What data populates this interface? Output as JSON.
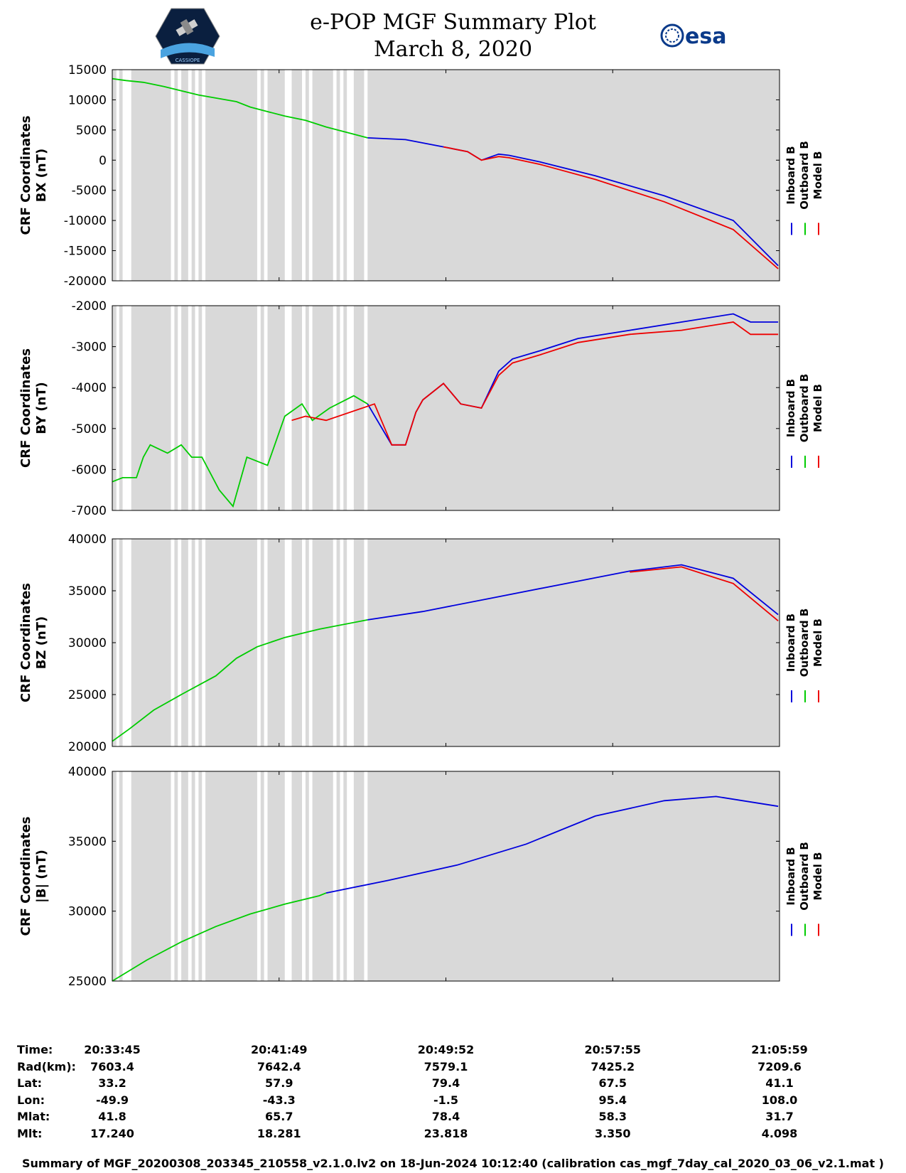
{
  "header": {
    "title_line1": "e-POP MGF Summary Plot",
    "title_line2": "March 8, 2020",
    "logo_left": "CASSIOPE",
    "logo_right": "esa"
  },
  "colors": {
    "inboard": "#0000dd",
    "outboard": "#00cc00",
    "model": "#ee0000",
    "gap": "#d9d9d9"
  },
  "legend": [
    "Inboard B",
    "Outboard B",
    "Model B"
  ],
  "chart_data": [
    {
      "type": "line",
      "ylabel1": "CRF Coordinates",
      "ylabel2": "BX (nT)",
      "ylim": [
        -20000,
        15000
      ],
      "yticks": [
        15000,
        10000,
        5000,
        0,
        -5000,
        -10000,
        -15000,
        -20000
      ],
      "xlim": [
        0,
        1934
      ],
      "series": [
        {
          "name": "Outboard B",
          "x": [
            0,
            40,
            90,
            100,
            150,
            250,
            360,
            400,
            500,
            560,
            620,
            740
          ],
          "values": [
            13500,
            13200,
            12900,
            12800,
            12200,
            10800,
            9700,
            8800,
            7300,
            6600,
            5500,
            3700
          ]
        },
        {
          "name": "Inboard B",
          "x": [
            740,
            850,
            960,
            1030,
            1070,
            1120,
            1150,
            1240,
            1400,
            1600,
            1800,
            1930
          ],
          "values": [
            3700,
            3400,
            2200,
            1400,
            0,
            1000,
            800,
            -300,
            -2600,
            -5900,
            -10000,
            -17500
          ]
        },
        {
          "name": "Model B",
          "x": [
            960,
            1030,
            1070,
            1120,
            1150,
            1240,
            1400,
            1600,
            1800,
            1930
          ],
          "values": [
            2200,
            1400,
            0,
            600,
            400,
            -700,
            -3200,
            -6900,
            -11500,
            -18000
          ]
        }
      ]
    },
    {
      "type": "line",
      "ylabel1": "CRF Coordinates",
      "ylabel2": "BY (nT)",
      "ylim": [
        -7000,
        -2000
      ],
      "yticks": [
        -2000,
        -3000,
        -4000,
        -5000,
        -6000,
        -7000
      ],
      "xlim": [
        0,
        1934
      ],
      "series": [
        {
          "name": "Outboard B",
          "x": [
            0,
            30,
            70,
            90,
            110,
            160,
            200,
            230,
            260,
            310,
            350,
            390,
            450,
            500,
            550,
            580,
            630,
            700,
            740
          ],
          "values": [
            -6300,
            -6200,
            -6200,
            -5700,
            -5400,
            -5600,
            -5400,
            -5700,
            -5700,
            -6500,
            -6900,
            -5700,
            -5900,
            -4700,
            -4400,
            -4800,
            -4500,
            -4200,
            -4400
          ]
        },
        {
          "name": "Inboard B",
          "x": [
            740,
            810,
            850,
            880,
            900,
            960,
            1010,
            1070,
            1120,
            1160,
            1240,
            1350,
            1500,
            1650,
            1800,
            1850,
            1930
          ],
          "values": [
            -4400,
            -5400,
            -5400,
            -4600,
            -4300,
            -3900,
            -4400,
            -4500,
            -3600,
            -3300,
            -3100,
            -2800,
            -2600,
            -2400,
            -2200,
            -2400,
            -2400
          ]
        },
        {
          "name": "Model B",
          "x": [
            520,
            560,
            620,
            760,
            810,
            850,
            880,
            900,
            960,
            1010,
            1070,
            1120,
            1160,
            1240,
            1350,
            1500,
            1650,
            1800,
            1850,
            1930
          ],
          "values": [
            -4800,
            -4700,
            -4800,
            -4400,
            -5400,
            -5400,
            -4600,
            -4300,
            -3900,
            -4400,
            -4500,
            -3700,
            -3400,
            -3200,
            -2900,
            -2700,
            -2600,
            -2400,
            -2700,
            -2700
          ]
        }
      ]
    },
    {
      "type": "line",
      "ylabel1": "CRF Coordinates",
      "ylabel2": "BZ (nT)",
      "ylim": [
        20000,
        40000
      ],
      "yticks": [
        40000,
        35000,
        30000,
        25000,
        20000
      ],
      "xlim": [
        0,
        1934
      ],
      "series": [
        {
          "name": "Outboard B",
          "x": [
            0,
            50,
            120,
            200,
            300,
            360,
            420,
            500,
            600,
            740
          ],
          "values": [
            20500,
            21700,
            23500,
            25000,
            26800,
            28500,
            29600,
            30500,
            31300,
            32200
          ]
        },
        {
          "name": "Inboard B",
          "x": [
            740,
            900,
            1100,
            1300,
            1500,
            1650,
            1800,
            1930
          ],
          "values": [
            32200,
            33000,
            34300,
            35600,
            36900,
            37500,
            36200,
            32700
          ]
        },
        {
          "name": "Model B",
          "x": [
            1500,
            1650,
            1800,
            1930
          ],
          "values": [
            36800,
            37300,
            35700,
            32100
          ]
        }
      ]
    },
    {
      "type": "line",
      "ylabel1": "CRF Coordinates",
      "ylabel2": "|B| (nT)",
      "ylim": [
        25000,
        40000
      ],
      "yticks": [
        40000,
        35000,
        30000,
        25000
      ],
      "xlim": [
        0,
        1934
      ],
      "series": [
        {
          "name": "Outboard B",
          "x": [
            0,
            100,
            200,
            300,
            400,
            500,
            600,
            620
          ],
          "values": [
            25000,
            26500,
            27800,
            28900,
            29800,
            30500,
            31100,
            31300
          ]
        },
        {
          "name": "Inboard B",
          "x": [
            620,
            800,
            1000,
            1200,
            1400,
            1600,
            1750,
            1930
          ],
          "values": [
            31300,
            32200,
            33300,
            34800,
            36800,
            37900,
            38200,
            37500
          ]
        }
      ]
    }
  ],
  "gap_bands": [
    [
      0,
      12
    ],
    [
      20,
      30
    ],
    [
      55,
      170
    ],
    [
      180,
      190
    ],
    [
      200,
      220
    ],
    [
      230,
      240
    ],
    [
      250,
      260
    ],
    [
      270,
      420
    ],
    [
      430,
      440
    ],
    [
      450,
      500
    ],
    [
      520,
      550
    ],
    [
      560,
      570
    ],
    [
      580,
      640
    ],
    [
      650,
      660
    ],
    [
      670,
      680
    ],
    [
      700,
      730
    ],
    [
      740,
      1934
    ]
  ],
  "orbit": {
    "labels": [
      "Time:",
      "Rad(km):",
      "Lat:",
      "Lon:",
      "Mlat:",
      "Mlt:"
    ],
    "columns": [
      [
        "20:33:45",
        "7603.4",
        "33.2",
        "-49.9",
        "41.8",
        "17.240"
      ],
      [
        "20:41:49",
        "7642.4",
        "57.9",
        "-43.3",
        "65.7",
        "18.281"
      ],
      [
        "20:49:52",
        "7579.1",
        "79.4",
        "-1.5",
        "78.4",
        "23.818"
      ],
      [
        "20:57:55",
        "7425.2",
        "67.5",
        "95.4",
        "58.3",
        "3.350"
      ],
      [
        "21:05:59",
        "7209.6",
        "41.1",
        "108.0",
        "31.7",
        "4.098"
      ]
    ]
  },
  "footer": "Summary of MGF_20200308_203345_210558_v2.1.0.lv2 on 18-Jun-2024 10:12:40 (calibration cas_mgf_7day_cal_2020_03_06_v2.1.mat )"
}
